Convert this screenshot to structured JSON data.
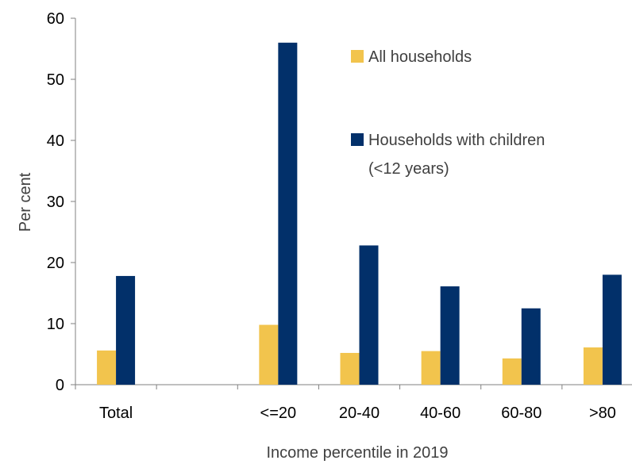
{
  "chart_data": {
    "type": "bar",
    "categories": [
      "Total",
      "",
      "<=20",
      "20-40",
      "40-60",
      "60-80",
      ">80"
    ],
    "series": [
      {
        "name": "All households",
        "color": "#F2C44D",
        "values": [
          5.6,
          null,
          9.8,
          5.2,
          5.5,
          4.3,
          6.1
        ]
      },
      {
        "name": "Households with children (<12 years)",
        "color": "#02306A",
        "values": [
          17.8,
          null,
          56.0,
          22.8,
          16.1,
          12.5,
          18.0
        ]
      }
    ],
    "xlabel": "Income percentile in 2019",
    "ylabel": "Per cent",
    "ylim": [
      0,
      60
    ],
    "yticks": [
      0,
      10,
      20,
      30,
      40,
      50,
      60
    ],
    "grid": false,
    "legend": {
      "placement": "top-right",
      "entries": [
        {
          "lines": [
            "All households"
          ],
          "color": "#F2C44D"
        },
        {
          "lines": [
            "Households with children",
            "(<12 years)"
          ],
          "color": "#02306A"
        }
      ]
    }
  }
}
